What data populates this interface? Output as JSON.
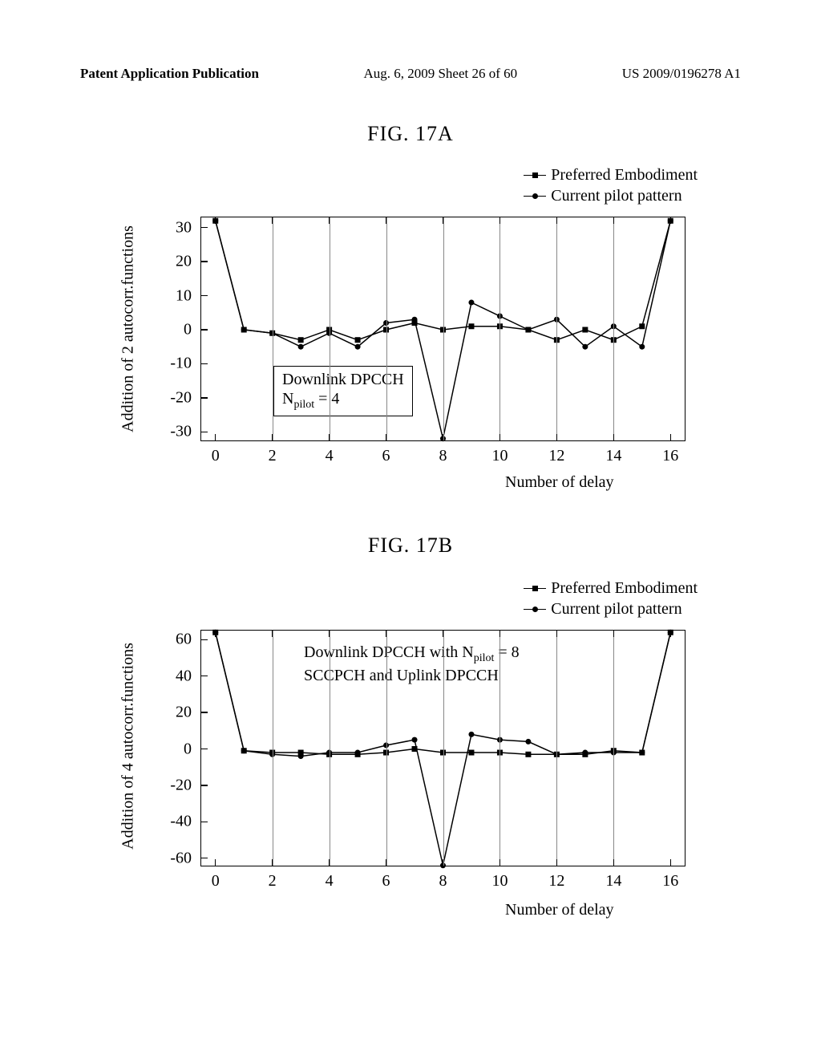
{
  "header": {
    "left": "Patent Application Publication",
    "center": "Aug. 6, 2009  Sheet 26 of 60",
    "right": "US 2009/0196278 A1"
  },
  "figA": {
    "title": "FIG. 17A",
    "ylabel": "Addition of 2 autocorr.functions",
    "xlabel": "Number of delay",
    "legend": {
      "preferred": "Preferred Embodiment",
      "current": "Current pilot pattern"
    },
    "annot_line1": "Downlink DPCCH",
    "annot_line2_pre": "N",
    "annot_line2_sub": "pilot",
    "annot_line2_post": " = 4",
    "xlim": [
      -0.5,
      16.5
    ],
    "ylim": [
      -33,
      33
    ],
    "yticks": [
      -30,
      -20,
      -10,
      0,
      10,
      20,
      30
    ],
    "xticks": [
      0,
      2,
      4,
      6,
      8,
      10,
      12,
      14,
      16
    ],
    "series": {
      "preferred": {
        "marker": "square",
        "x": [
          0,
          1,
          2,
          3,
          4,
          5,
          6,
          7,
          8,
          9,
          10,
          11,
          12,
          13,
          14,
          15,
          16
        ],
        "y": [
          32,
          0,
          -1,
          -3,
          0,
          -3,
          0,
          2,
          0,
          1,
          1,
          0,
          -3,
          0,
          -3,
          1,
          32
        ]
      },
      "current": {
        "marker": "circle",
        "x": [
          0,
          1,
          2,
          3,
          4,
          5,
          6,
          7,
          8,
          9,
          10,
          11,
          12,
          13,
          14,
          15,
          16
        ],
        "y": [
          32,
          0,
          -1,
          -5,
          -1,
          -5,
          2,
          3,
          -32,
          8,
          4,
          0,
          3,
          -5,
          1,
          -5,
          32
        ]
      }
    },
    "colors": {
      "line": "#000000",
      "background": "#ffffff",
      "text": "#000000"
    }
  },
  "figB": {
    "title": "FIG. 17B",
    "ylabel": "Addition of 4 autocorr.functions",
    "xlabel": "Number of delay",
    "legend": {
      "preferred": "Preferred Embodiment",
      "current": "Current pilot pattern"
    },
    "annot_line1_pre": "Downlink DPCCH with N",
    "annot_line1_sub": "pilot",
    "annot_line1_post": " = 8",
    "annot_line2": "SCCPCH and Uplink DPCCH",
    "xlim": [
      -0.5,
      16.5
    ],
    "ylim": [
      -65,
      65
    ],
    "yticks": [
      -60,
      -40,
      -20,
      0,
      20,
      40,
      60
    ],
    "xticks": [
      0,
      2,
      4,
      6,
      8,
      10,
      12,
      14,
      16
    ],
    "series": {
      "preferred": {
        "marker": "square",
        "x": [
          0,
          1,
          2,
          3,
          4,
          5,
          6,
          7,
          8,
          9,
          10,
          11,
          12,
          13,
          14,
          15,
          16
        ],
        "y": [
          64,
          -1,
          -2,
          -2,
          -3,
          -3,
          -2,
          0,
          -2,
          -2,
          -2,
          -3,
          -3,
          -3,
          -1,
          -2,
          64
        ]
      },
      "current": {
        "marker": "circle",
        "x": [
          0,
          1,
          2,
          3,
          4,
          5,
          6,
          7,
          8,
          9,
          10,
          11,
          12,
          13,
          14,
          15,
          16
        ],
        "y": [
          64,
          -1,
          -3,
          -4,
          -2,
          -2,
          2,
          5,
          -64,
          8,
          5,
          4,
          -3,
          -2,
          -2,
          -2,
          64
        ]
      }
    },
    "colors": {
      "line": "#000000",
      "background": "#ffffff",
      "text": "#000000"
    }
  }
}
